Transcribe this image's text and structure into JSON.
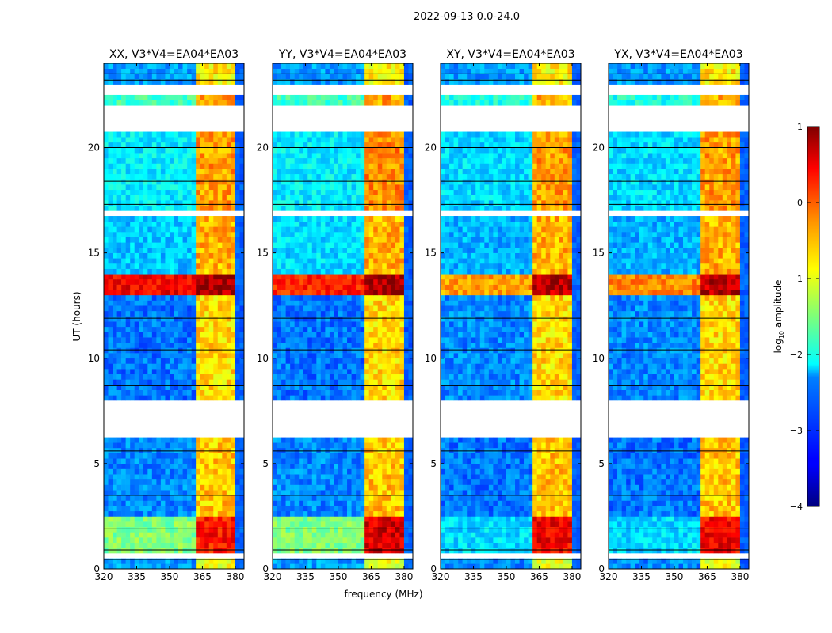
{
  "chart_data": {
    "type": "heatmap",
    "title": "2022-09-13 0.0-24.0",
    "xlabel": "frequency (MHz)",
    "ylabel": "UT (hours)",
    "xlim": [
      320,
      384
    ],
    "ylim": [
      0,
      24
    ],
    "xticks": [
      "320",
      "335",
      "350",
      "365",
      "380"
    ],
    "yticks": [
      "0",
      "5",
      "10",
      "15",
      "20"
    ],
    "colorbar": {
      "label": "log10 amplitude",
      "label_main": "log",
      "label_sub": "10",
      "label_rest": " amplitude",
      "range": [
        -4,
        1
      ],
      "ticks": [
        "−4",
        "−3",
        "−2",
        "−1",
        "0",
        "1"
      ],
      "colormap": "jet"
    },
    "rfi_band_mhz": [
      362,
      380
    ],
    "panels": [
      {
        "title": "XX, V3*V4=EA04*EA03",
        "segments": [
          {
            "start": 0,
            "end": 0.5,
            "base": -2.6,
            "rfi": -1.0
          },
          {
            "start": 0.5,
            "end": 0.7,
            "flagged": true
          },
          {
            "start": 0.7,
            "end": 2.5,
            "base": -1.5,
            "rfi": 0.3
          },
          {
            "start": 2.5,
            "end": 6.1,
            "base": -2.7,
            "rfi": -0.6
          },
          {
            "start": 6.1,
            "end": 7.9,
            "flagged": true
          },
          {
            "start": 7.9,
            "end": 13.0,
            "base": -2.8,
            "rfi": -0.7
          },
          {
            "start": 13.0,
            "end": 14.0,
            "base": 0.4,
            "rfi": 0.8
          },
          {
            "start": 14.0,
            "end": 16.7,
            "base": -2.4,
            "rfi": -0.5
          },
          {
            "start": 16.7,
            "end": 16.9,
            "flagged": true
          },
          {
            "start": 16.9,
            "end": 20.7,
            "base": -2.2,
            "rfi": -0.4
          },
          {
            "start": 20.7,
            "end": 21.9,
            "flagged": true
          },
          {
            "start": 21.9,
            "end": 22.5,
            "base": -1.8,
            "rfi": -0.4
          },
          {
            "start": 22.5,
            "end": 23.0,
            "flagged": true
          },
          {
            "start": 23.0,
            "end": 24.0,
            "base": -2.6,
            "rfi": -0.8
          }
        ]
      },
      {
        "title": "YY, V3*V4=EA04*EA03",
        "segments": [
          {
            "start": 0,
            "end": 0.5,
            "base": -2.6,
            "rfi": -1.0
          },
          {
            "start": 0.5,
            "end": 0.7,
            "flagged": true
          },
          {
            "start": 0.7,
            "end": 2.5,
            "base": -1.5,
            "rfi": 0.6
          },
          {
            "start": 2.5,
            "end": 6.1,
            "base": -2.7,
            "rfi": -0.6
          },
          {
            "start": 6.1,
            "end": 7.9,
            "flagged": true
          },
          {
            "start": 7.9,
            "end": 13.0,
            "base": -2.8,
            "rfi": -0.7
          },
          {
            "start": 13.0,
            "end": 14.0,
            "base": 0.2,
            "rfi": 0.8
          },
          {
            "start": 14.0,
            "end": 16.7,
            "base": -2.3,
            "rfi": -0.5
          },
          {
            "start": 16.7,
            "end": 16.9,
            "flagged": true
          },
          {
            "start": 16.9,
            "end": 20.7,
            "base": -2.2,
            "rfi": -0.3
          },
          {
            "start": 20.7,
            "end": 21.9,
            "flagged": true
          },
          {
            "start": 21.9,
            "end": 22.5,
            "base": -1.8,
            "rfi": -0.4
          },
          {
            "start": 22.5,
            "end": 23.0,
            "flagged": true
          },
          {
            "start": 23.0,
            "end": 24.0,
            "base": -2.6,
            "rfi": -0.8
          }
        ]
      },
      {
        "title": "XY, V3*V4=EA04*EA03",
        "segments": [
          {
            "start": 0,
            "end": 0.5,
            "base": -2.7,
            "rfi": -1.0
          },
          {
            "start": 0.5,
            "end": 0.7,
            "flagged": true
          },
          {
            "start": 0.7,
            "end": 2.5,
            "base": -2.3,
            "rfi": 0.4
          },
          {
            "start": 2.5,
            "end": 6.1,
            "base": -2.8,
            "rfi": -0.6
          },
          {
            "start": 6.1,
            "end": 7.9,
            "flagged": true
          },
          {
            "start": 7.9,
            "end": 13.0,
            "base": -2.7,
            "rfi": -0.7
          },
          {
            "start": 13.0,
            "end": 14.0,
            "base": -0.4,
            "rfi": 0.7
          },
          {
            "start": 14.0,
            "end": 16.7,
            "base": -2.5,
            "rfi": -0.5
          },
          {
            "start": 16.7,
            "end": 16.9,
            "flagged": true
          },
          {
            "start": 16.9,
            "end": 20.7,
            "base": -2.3,
            "rfi": -0.4
          },
          {
            "start": 20.7,
            "end": 21.9,
            "flagged": true
          },
          {
            "start": 21.9,
            "end": 22.5,
            "base": -2.0,
            "rfi": -0.5
          },
          {
            "start": 22.5,
            "end": 23.0,
            "flagged": true
          },
          {
            "start": 23.0,
            "end": 24.0,
            "base": -2.6,
            "rfi": -0.8
          }
        ]
      },
      {
        "title": "YX, V3*V4=EA04*EA03",
        "segments": [
          {
            "start": 0,
            "end": 0.5,
            "base": -2.7,
            "rfi": -1.0
          },
          {
            "start": 0.5,
            "end": 0.7,
            "flagged": true
          },
          {
            "start": 0.7,
            "end": 2.5,
            "base": -2.3,
            "rfi": 0.4
          },
          {
            "start": 2.5,
            "end": 6.1,
            "base": -2.8,
            "rfi": -0.6
          },
          {
            "start": 6.1,
            "end": 7.9,
            "flagged": true
          },
          {
            "start": 7.9,
            "end": 13.0,
            "base": -2.7,
            "rfi": -0.7
          },
          {
            "start": 13.0,
            "end": 14.0,
            "base": -0.3,
            "rfi": 0.7
          },
          {
            "start": 14.0,
            "end": 16.7,
            "base": -2.5,
            "rfi": -0.5
          },
          {
            "start": 16.7,
            "end": 16.9,
            "flagged": true
          },
          {
            "start": 16.9,
            "end": 20.7,
            "base": -2.3,
            "rfi": -0.4
          },
          {
            "start": 20.7,
            "end": 21.9,
            "flagged": true
          },
          {
            "start": 21.9,
            "end": 22.5,
            "base": -2.0,
            "rfi": -0.5
          },
          {
            "start": 22.5,
            "end": 23.0,
            "flagged": true
          },
          {
            "start": 23.0,
            "end": 24.0,
            "base": -2.6,
            "rfi": -0.8
          }
        ]
      }
    ]
  }
}
